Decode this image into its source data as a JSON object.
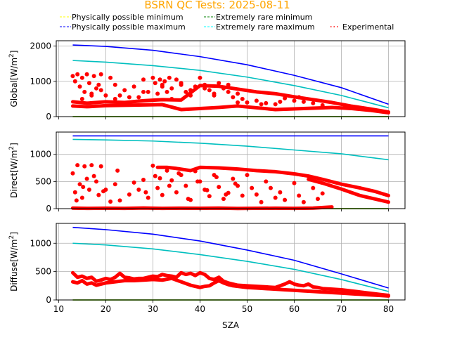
{
  "chart_data": {
    "type": "scatter",
    "title": "BSRN QC Tests: 2025-08-11",
    "title_color": "#ffa500",
    "xlabel": "SZA",
    "xlim": [
      9.5,
      83.5
    ],
    "xticks": [
      10,
      20,
      30,
      40,
      50,
      60,
      70,
      80
    ],
    "grid": true,
    "legend": {
      "placement": "top",
      "entries": [
        {
          "label": "Physically possible minimum",
          "color": "#ffff00",
          "style": "dashed"
        },
        {
          "label": "Extremely rare minimum",
          "color": "#008000",
          "style": "dashed"
        },
        {
          "label": "Physically possible maximum",
          "color": "#0000ff",
          "style": "dashed"
        },
        {
          "label": "Extremely rare maximum",
          "color": "#00ffff",
          "style": "dashed"
        },
        {
          "label": "Experimental",
          "color": "#ff0000",
          "style": "dotted"
        }
      ]
    },
    "panels": [
      {
        "name": "global",
        "ylabel": "Global[W/m",
        "ylabel_sup": "2",
        "ylabel_end": "]",
        "ylim": [
          0,
          2150
        ],
        "yticks": [
          0,
          1000,
          2000
        ],
        "series": [
          {
            "name": "Physically possible minimum",
            "color": "#ffff00",
            "x": [
              13,
              80
            ],
            "y": [
              0,
              0
            ]
          },
          {
            "name": "Extremely rare minimum",
            "color": "#008000",
            "x": [
              13,
              80
            ],
            "y": [
              0,
              0
            ]
          },
          {
            "name": "Physically possible maximum",
            "color": "#0000ff",
            "x": [
              13,
              20,
              30,
              40,
              50,
              60,
              70,
              80
            ],
            "y": [
              2030,
              1990,
              1880,
              1700,
              1470,
              1170,
              820,
              350
            ]
          },
          {
            "name": "Extremely rare maximum",
            "color": "#00bfbf",
            "x": [
              13,
              20,
              30,
              40,
              50,
              60,
              70,
              80
            ],
            "y": [
              1590,
              1545,
              1445,
              1310,
              1120,
              880,
              600,
              250
            ]
          }
        ],
        "experimental": {
          "upper_x": [
            13,
            16,
            20,
            24,
            28,
            32,
            36,
            40,
            44,
            48,
            52,
            56,
            60,
            64,
            68,
            72,
            76,
            80
          ],
          "upper_y": [
            420,
            380,
            420,
            400,
            450,
            480,
            470,
            880,
            860,
            780,
            700,
            650,
            560,
            480,
            400,
            300,
            220,
            130
          ],
          "lower_x": [
            13,
            16,
            20,
            24,
            28,
            32,
            36,
            40,
            44,
            48,
            52,
            56,
            60,
            64,
            68,
            72,
            76,
            80
          ],
          "lower_y": [
            300,
            280,
            310,
            320,
            330,
            340,
            200,
            230,
            260,
            300,
            250,
            200,
            220,
            240,
            260,
            230,
            180,
            110
          ],
          "scatter_x": [
            13,
            13.5,
            14,
            14.5,
            15,
            15.5,
            16,
            16.5,
            17,
            17.5,
            18,
            18.5,
            19,
            20,
            21,
            22,
            23,
            24,
            26,
            27,
            28,
            29,
            30,
            30.5,
            31,
            31.5,
            32,
            32.5,
            33,
            33.5,
            34,
            35,
            36,
            37,
            38,
            39,
            40,
            41,
            42,
            43,
            44,
            45,
            46,
            47,
            48,
            49,
            50,
            52,
            54,
            56,
            58,
            60,
            62,
            64,
            66,
            15,
            17,
            19,
            22,
            25,
            28,
            32,
            34,
            36,
            38,
            41,
            43,
            46,
            48,
            53,
            57,
            61
          ],
          "scatter_y": [
            1150,
            1000,
            1200,
            850,
            1100,
            700,
            1200,
            950,
            650,
            1150,
            800,
            900,
            1200,
            600,
            1100,
            500,
            600,
            750,
            850,
            550,
            1050,
            700,
            1100,
            950,
            650,
            1050,
            900,
            1000,
            700,
            1100,
            800,
            1050,
            900,
            700,
            600,
            850,
            1100,
            900,
            750,
            600,
            950,
            800,
            700,
            550,
            650,
            500,
            400,
            450,
            380,
            350,
            520,
            450,
            420,
            380,
            320,
            500,
            600,
            750,
            900,
            550,
            700,
            850,
            500,
            950,
            750,
            800,
            650,
            900,
            400,
            350,
            420,
            550
          ]
        }
      },
      {
        "name": "direct",
        "ylabel": "Direct[W/m",
        "ylabel_sup": "2",
        "ylabel_end": "]",
        "ylim": [
          0,
          1410
        ],
        "yticks": [
          0,
          500,
          1000
        ],
        "series": [
          {
            "name": "Physically possible minimum",
            "color": "#ffff00",
            "x": [
              13,
              80
            ],
            "y": [
              0,
              0
            ]
          },
          {
            "name": "Extremely rare minimum",
            "color": "#008000",
            "x": [
              13,
              80
            ],
            "y": [
              0,
              0
            ]
          },
          {
            "name": "Physically possible maximum",
            "color": "#0000ff",
            "x": [
              13,
              80
            ],
            "y": [
              1340,
              1340
            ]
          },
          {
            "name": "Extremely rare maximum",
            "color": "#00bfbf",
            "x": [
              13,
              20,
              30,
              40,
              50,
              60,
              70,
              80
            ],
            "y": [
              1275,
              1265,
              1245,
              1205,
              1150,
              1080,
              1010,
              900
            ]
          }
        ],
        "experimental": {
          "upper_x": [
            31,
            33,
            35,
            38,
            40,
            44,
            48,
            52,
            56,
            60,
            63,
            66,
            70,
            74,
            77,
            80
          ],
          "upper_y": [
            760,
            760,
            740,
            700,
            760,
            750,
            730,
            700,
            680,
            640,
            600,
            540,
            450,
            380,
            320,
            240
          ],
          "lower_x": [
            63,
            66,
            70,
            74,
            77,
            80
          ],
          "lower_y": [
            540,
            470,
            360,
            240,
            180,
            120
          ],
          "zero_x": [
            13,
            16,
            20,
            24,
            28,
            32,
            36,
            40,
            44,
            48,
            52,
            56,
            60,
            64,
            68
          ],
          "zero_y": [
            10,
            5,
            8,
            5,
            12,
            5,
            8,
            6,
            10,
            4,
            6,
            8,
            5,
            10,
            30
          ],
          "scatter_x": [
            13,
            13.5,
            14,
            14.5,
            15,
            15.5,
            16,
            16.5,
            17,
            18,
            18.5,
            19,
            20,
            21,
            22,
            23,
            25,
            27,
            28,
            29,
            30,
            30.5,
            31,
            32,
            33,
            34,
            35,
            36,
            37,
            38,
            39,
            40,
            41,
            42,
            43,
            44,
            45,
            46,
            47,
            48,
            49,
            50,
            51,
            52,
            53,
            54,
            55,
            56,
            57,
            58,
            60,
            61,
            62,
            64,
            65,
            66,
            13.8,
            15.2,
            17.5,
            19.5,
            22.5,
            26,
            28.5,
            31.5,
            33.5,
            35.5,
            37.5,
            39.5,
            41.5,
            43.5,
            45.5,
            47.5
          ],
          "scatter_y": [
            650,
            300,
            800,
            450,
            200,
            780,
            550,
            350,
            800,
            500,
            250,
            780,
            350,
            130,
            450,
            150,
            260,
            350,
            530,
            200,
            790,
            600,
            380,
            250,
            700,
            520,
            300,
            620,
            420,
            160,
            690,
            500,
            350,
            230,
            620,
            400,
            180,
            290,
            550,
            420,
            240,
            620,
            380,
            260,
            120,
            500,
            380,
            200,
            300,
            160,
            470,
            240,
            120,
            380,
            180,
            280,
            150,
            400,
            600,
            320,
            700,
            480,
            300,
            560,
            420,
            650,
            180,
            500,
            340,
            580,
            260,
            460
          ]
        }
      },
      {
        "name": "diffuse",
        "ylabel": "Diffuse[W/m",
        "ylabel_sup": "2",
        "ylabel_end": "]",
        "ylim": [
          0,
          1350
        ],
        "yticks": [
          0,
          500,
          1000
        ],
        "series": [
          {
            "name": "Physically possible minimum",
            "color": "#ffff00",
            "x": [
              13,
              80
            ],
            "y": [
              0,
              0
            ]
          },
          {
            "name": "Extremely rare minimum",
            "color": "#008000",
            "x": [
              13,
              80
            ],
            "y": [
              0,
              0
            ]
          },
          {
            "name": "Physically possible maximum",
            "color": "#0000ff",
            "x": [
              13,
              20,
              30,
              40,
              50,
              60,
              70,
              80
            ],
            "y": [
              1280,
              1240,
              1160,
              1040,
              880,
              700,
              460,
              210
            ]
          },
          {
            "name": "Extremely rare maximum",
            "color": "#00bfbf",
            "x": [
              13,
              20,
              30,
              40,
              50,
              60,
              70,
              80
            ],
            "y": [
              1000,
              970,
              900,
              800,
              680,
              540,
              360,
              150
            ]
          }
        ],
        "experimental": {
          "upper_x": [
            13,
            14,
            15,
            16,
            17,
            18,
            19,
            20,
            21,
            22,
            23,
            24,
            25,
            26,
            27,
            28,
            29,
            30,
            31,
            32,
            33,
            34,
            35,
            36,
            37,
            38,
            39,
            40,
            41,
            42,
            43,
            44,
            45,
            46,
            47,
            48,
            50,
            52,
            54,
            56,
            58,
            59,
            60,
            61,
            62,
            63,
            64,
            65,
            66,
            68,
            70,
            72,
            74,
            76,
            78,
            80
          ],
          "upper_y": [
            480,
            400,
            420,
            380,
            400,
            330,
            350,
            380,
            360,
            400,
            470,
            400,
            390,
            370,
            380,
            380,
            400,
            420,
            410,
            450,
            430,
            420,
            400,
            480,
            450,
            470,
            430,
            480,
            450,
            380,
            360,
            400,
            330,
            300,
            280,
            260,
            250,
            240,
            230,
            220,
            280,
            320,
            280,
            260,
            250,
            280,
            230,
            220,
            200,
            190,
            180,
            160,
            140,
            120,
            100,
            80
          ],
          "lower_x": [
            13,
            14,
            15,
            16,
            17,
            18,
            19,
            20,
            22,
            24,
            26,
            28,
            30,
            32,
            34,
            36,
            38,
            40,
            41,
            42,
            43,
            44,
            45,
            46,
            47,
            48,
            50,
            52,
            54,
            56,
            58,
            60,
            62,
            64,
            66,
            68,
            70,
            72,
            74,
            76,
            78,
            80
          ],
          "lower_y": [
            320,
            300,
            340,
            280,
            300,
            260,
            280,
            300,
            320,
            340,
            340,
            350,
            360,
            350,
            380,
            320,
            260,
            220,
            240,
            250,
            300,
            340,
            300,
            270,
            250,
            240,
            220,
            210,
            200,
            190,
            180,
            170,
            160,
            150,
            140,
            130,
            120,
            110,
            100,
            90,
            80,
            70
          ]
        }
      }
    ]
  }
}
